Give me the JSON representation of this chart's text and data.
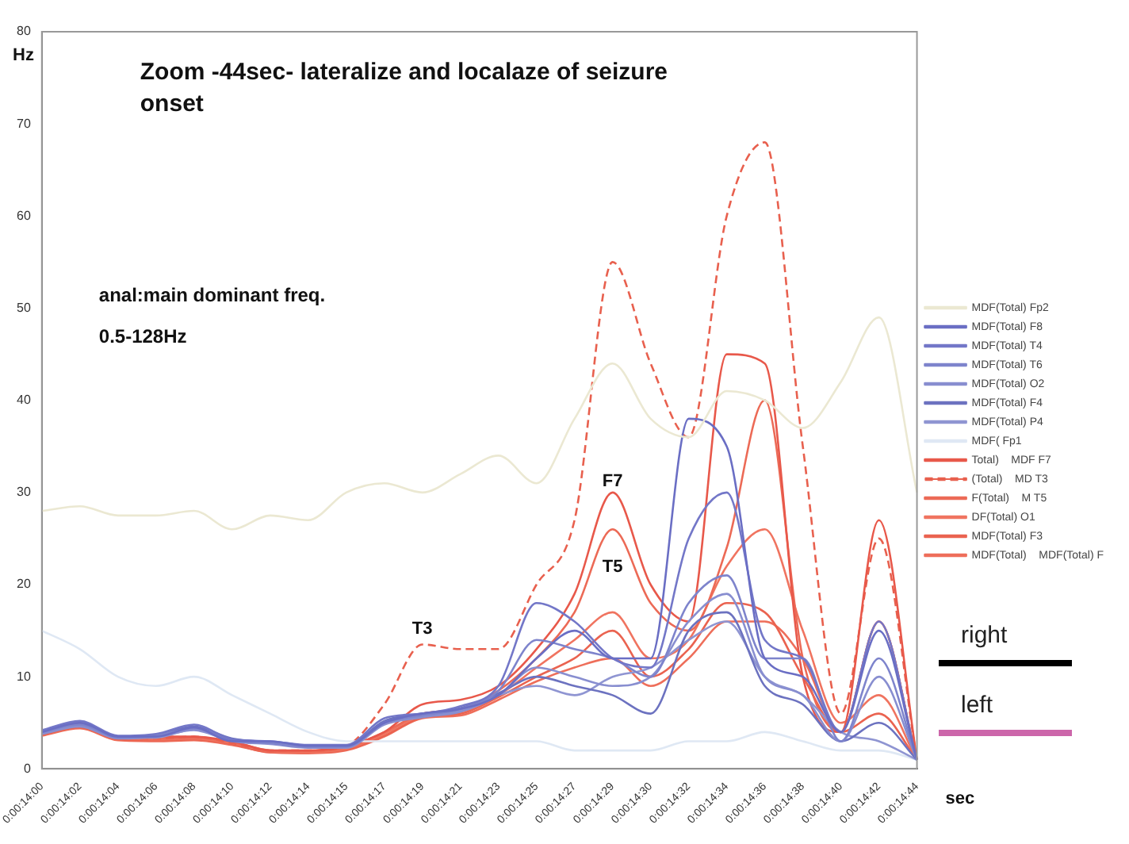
{
  "chart_data": {
    "type": "line",
    "title": "Zoom -44sec- lateralize and localaze of seizure onset",
    "xlabel": "sec",
    "ylabel": "Hz",
    "categories": [
      "0:00:14:00",
      "0:00:14:02",
      "0:00:14:04",
      "0:00:14:06",
      "0:00:14:08",
      "0:00:14:10",
      "0:00:14:12",
      "0:00:14:14",
      "0:00:14:15",
      "0:00:14:17",
      "0:00:14:19",
      "0:00:14:21",
      "0:00:14:23",
      "0:00:14:25",
      "0:00:14:27",
      "0:00:14:29",
      "0:00:14:30",
      "0:00:14:32",
      "0:00:14:34",
      "0:00:14:36",
      "0:00:14:38",
      "0:00:14:40",
      "0:00:14:42",
      "0:00:14:44"
    ],
    "ylim": [
      0,
      80
    ],
    "yticks": [
      0,
      10,
      20,
      30,
      40,
      50,
      60,
      70,
      80
    ],
    "grid": false,
    "legend": "right",
    "marker": "none",
    "line_style": "solid",
    "series": [
      {
        "name": "MDF(Total) Fp2",
        "color": "#ebe8d2",
        "values": [
          28,
          28.5,
          27.5,
          27.5,
          28,
          26,
          27.5,
          27,
          30,
          31,
          30,
          32,
          34,
          31,
          38,
          44,
          38,
          36,
          41,
          40,
          37,
          42,
          49,
          30
        ]
      },
      {
        "name": "MDF(Total) F8",
        "color": "#6a6ec4",
        "values": [
          4,
          5,
          3.5,
          3.5,
          4.5,
          3,
          3,
          2.5,
          2.5,
          5,
          6,
          6.5,
          8,
          12,
          15,
          12,
          12,
          38,
          35,
          12,
          10,
          4,
          15,
          1
        ]
      },
      {
        "name": "MDF(Total) T4",
        "color": "#7377c8",
        "values": [
          4.2,
          5.2,
          3.6,
          3.8,
          4.8,
          3.2,
          3,
          2.6,
          2.6,
          5.5,
          6,
          6.8,
          9,
          18,
          16,
          12,
          11,
          25,
          30,
          14,
          12,
          4,
          16,
          1
        ]
      },
      {
        "name": "MDF(Total) T6",
        "color": "#7e84cc",
        "values": [
          4,
          4.8,
          3.4,
          3.6,
          4.4,
          3.1,
          2.8,
          2.4,
          2.4,
          5,
          5.8,
          6.5,
          8.5,
          14,
          13,
          12,
          10,
          18,
          21,
          12,
          12,
          3,
          12,
          1
        ]
      },
      {
        "name": "MDF(Total) O2",
        "color": "#888ed0",
        "values": [
          3.8,
          4.6,
          3.3,
          3.5,
          4.2,
          3,
          2.7,
          2.3,
          2.3,
          4.8,
          5.6,
          6.2,
          8,
          11,
          10,
          9,
          10,
          16,
          19,
          10,
          8,
          3,
          10,
          1
        ]
      },
      {
        "name": "MDF(Total) F4",
        "color": "#6c72c0",
        "values": [
          4.1,
          5,
          3.5,
          3.7,
          4.6,
          3.3,
          2.9,
          2.5,
          2.5,
          5.2,
          6,
          6.6,
          8.2,
          10,
          9,
          8,
          6,
          15,
          17,
          9,
          7,
          3,
          5,
          1
        ]
      },
      {
        "name": "MDF(Total) P4",
        "color": "#8f95d2",
        "values": [
          3.9,
          4.7,
          3.4,
          3.4,
          4.3,
          3.2,
          2.8,
          2.4,
          2.4,
          4.9,
          5.7,
          6.3,
          8,
          9,
          8,
          10,
          11,
          14,
          16,
          10,
          8,
          4,
          3,
          1
        ]
      },
      {
        "name": "MDF( Fp1",
        "color": "#dfe8f4",
        "values": [
          15,
          13,
          10,
          9,
          10,
          8,
          6,
          4,
          3,
          3,
          3,
          3,
          3,
          3,
          2,
          2,
          2,
          3,
          3,
          4,
          3,
          2,
          2,
          1
        ]
      },
      {
        "name": "Total)    MDF F7",
        "color": "#e8584a",
        "values": [
          4,
          5,
          3.5,
          3.5,
          3.5,
          3,
          2,
          2,
          2.5,
          4,
          7,
          7.5,
          9,
          13,
          19,
          30,
          20,
          16,
          45,
          44,
          10,
          4,
          27,
          1
        ]
      },
      {
        "name": "(Total)    MD T3",
        "color": "#e8604e",
        "line_style": "dashed",
        "values": [
          4,
          4.8,
          3.5,
          3.3,
          3.5,
          2.8,
          2,
          2,
          2.5,
          7,
          13.5,
          13,
          13,
          20,
          27,
          55,
          44,
          36,
          60,
          68,
          35,
          6,
          25,
          1
        ]
      },
      {
        "name": "F(Total)    M T5",
        "color": "#ec6a56",
        "values": [
          3.8,
          4.6,
          3.3,
          3.3,
          3.4,
          2.9,
          2,
          1.9,
          2.3,
          4,
          6,
          6.5,
          8.5,
          12,
          17,
          26,
          18,
          15,
          24,
          40,
          12,
          4,
          16,
          1
        ]
      },
      {
        "name": "DF(Total) O1",
        "color": "#f07460",
        "values": [
          3.9,
          4.7,
          3.4,
          3.2,
          3.3,
          2.8,
          1.9,
          1.8,
          2.2,
          3.8,
          5.8,
          6.2,
          8,
          11,
          14,
          17,
          12,
          14,
          22,
          26,
          15,
          5,
          8,
          1
        ]
      },
      {
        "name": "MDF(Total) F3",
        "color": "#ea6350",
        "values": [
          3.7,
          4.5,
          3.2,
          3.1,
          3.2,
          2.7,
          1.8,
          1.8,
          2.1,
          3.6,
          5.6,
          6,
          7.8,
          10,
          12,
          15,
          10,
          13,
          18,
          17,
          10,
          4,
          6,
          1
        ]
      },
      {
        "name": "MDF(Total)    MDF(Total) F",
        "color": "#ee6e5a",
        "values": [
          3.6,
          4.4,
          3.1,
          3,
          3.1,
          2.6,
          1.8,
          1.7,
          2,
          3.5,
          5.5,
          5.8,
          7.5,
          9.5,
          11,
          12,
          9,
          12,
          16,
          16,
          12,
          4,
          16,
          1
        ]
      }
    ],
    "annotations": [
      "anal:main dominant freq.",
      "0.5-128Hz",
      {
        "text": "F7",
        "x": "0:00:14:29",
        "y": 30
      },
      "T5",
      {
        "text": "T3",
        "x": "0:00:14:19",
        "y": 14
      },
      "right",
      "left"
    ]
  }
}
